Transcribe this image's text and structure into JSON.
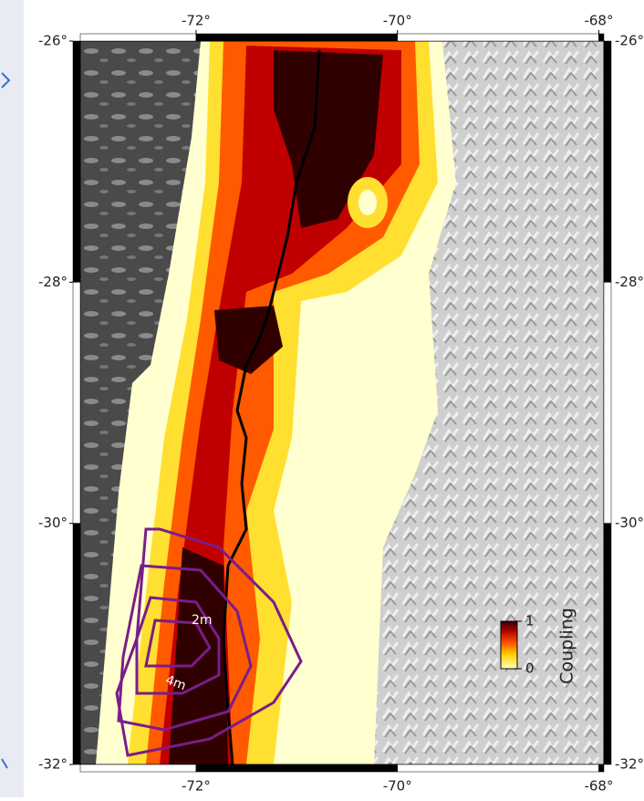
{
  "map": {
    "xlim": [
      -73.15,
      -67.95
    ],
    "ylim": [
      -32,
      -26
    ],
    "xticks": [
      {
        "value": -72,
        "label": "-72°"
      },
      {
        "value": -70,
        "label": "-70°"
      },
      {
        "value": -68,
        "label": "-68°"
      }
    ],
    "yticks": [
      {
        "value": -26,
        "label": "-26°"
      },
      {
        "value": -28,
        "label": "-28°"
      },
      {
        "value": -30,
        "label": "-30°"
      },
      {
        "value": -32,
        "label": "-32°"
      }
    ],
    "colorbar": {
      "title": "Coupling",
      "ticks": [
        0,
        1
      ]
    },
    "contour_labels": [
      "2m",
      "4m"
    ]
  }
}
